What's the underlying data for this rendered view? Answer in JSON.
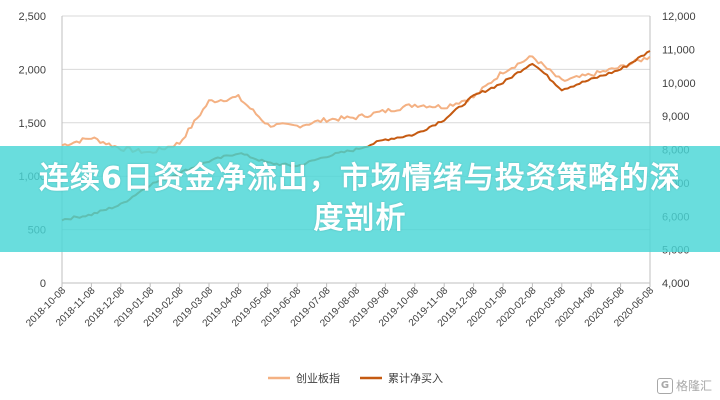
{
  "banner": {
    "title": "连续6日资金净流出，市场情绪与投资策略的深度剖析"
  },
  "watermark": {
    "text": "格隆汇",
    "icon": "G"
  },
  "chart_data": {
    "type": "line",
    "title": "",
    "xlabel": "",
    "ylabel": "",
    "ylabel_right": "",
    "categories": [
      "2018-10-08",
      "2018-11-08",
      "2018-12-08",
      "2019-01-08",
      "2019-02-08",
      "2019-03-08",
      "2019-04-08",
      "2019-05-08",
      "2019-06-08",
      "2019-07-08",
      "2019-08-08",
      "2019-09-08",
      "2019-10-08",
      "2019-11-08",
      "2019-12-08",
      "2020-01-08",
      "2020-02-08",
      "2020-03-08",
      "2020-04-08",
      "2020-05-08",
      "2020-06-08"
    ],
    "ylim_left": [
      0,
      2500
    ],
    "yticks_left": [
      "0",
      "500",
      "1,000",
      "1,500",
      "2,000",
      "2,500"
    ],
    "ylim_right": [
      4000,
      12000
    ],
    "yticks_right": [
      "4,000",
      "5,000",
      "6,000",
      "7,000",
      "8,000",
      "9,000",
      "10,000",
      "11,000",
      "12,000"
    ],
    "grid": "horizontal",
    "legend_position": "bottom-center",
    "series": [
      {
        "name": "创业板指",
        "axis": "left",
        "color": "#F4B183",
        "values": [
          1290,
          1360,
          1260,
          1220,
          1310,
          1700,
          1740,
          1480,
          1470,
          1530,
          1550,
          1610,
          1670,
          1650,
          1740,
          1980,
          2120,
          1890,
          1950,
          2020,
          2120
        ]
      },
      {
        "name": "累计净买入",
        "axis": "right",
        "color": "#C55A11",
        "values": [
          5900,
          6050,
          6350,
          6950,
          7300,
          7650,
          7900,
          7600,
          7500,
          7800,
          8000,
          8300,
          8450,
          8900,
          9600,
          10000,
          10600,
          9800,
          10100,
          10400,
          10950
        ]
      }
    ]
  }
}
